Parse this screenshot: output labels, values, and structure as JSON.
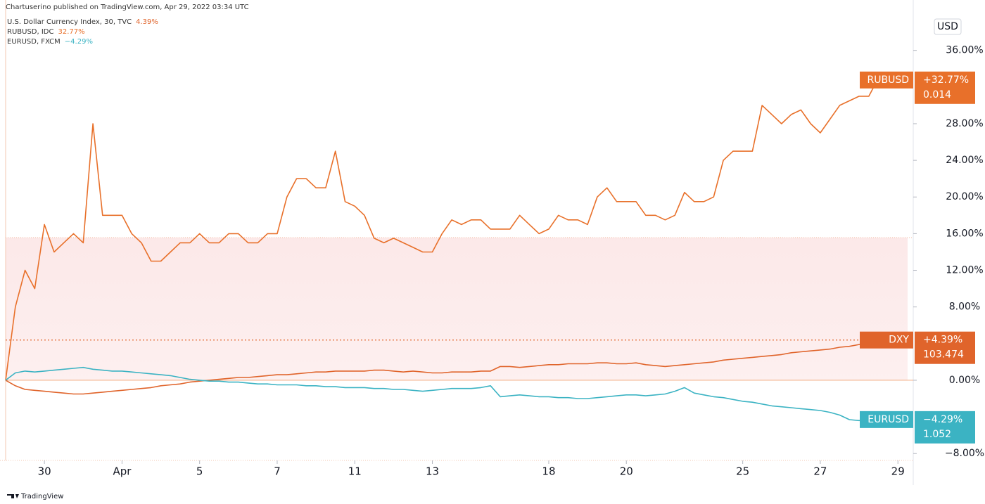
{
  "chart_data": {
    "type": "line",
    "attribution": "Chartuserino published on TradingView.com, Apr 29, 2022 03:34 UTC",
    "axis_unit": "USD",
    "footer": "TradingView",
    "categories": [
      null,
      null,
      null,
      null,
      "30",
      null,
      null,
      null,
      null,
      null,
      null,
      null,
      "Apr",
      null,
      null,
      null,
      null,
      null,
      null,
      null,
      "5",
      null,
      null,
      null,
      null,
      null,
      null,
      null,
      "7",
      null,
      null,
      null,
      null,
      null,
      null,
      null,
      "11",
      null,
      null,
      null,
      null,
      null,
      null,
      null,
      "13",
      null,
      null,
      null,
      null,
      null,
      null,
      null,
      null,
      null,
      null,
      null,
      "18",
      null,
      null,
      null,
      null,
      null,
      null,
      null,
      "20",
      null,
      null,
      null,
      null,
      null,
      null,
      null,
      null,
      null,
      null,
      null,
      "25",
      null,
      null,
      null,
      null,
      null,
      null,
      null,
      "27",
      null,
      null,
      null,
      null,
      null,
      null,
      null,
      "29",
      null
    ],
    "ylim": [
      -8.75,
      41.5
    ],
    "yticks": [
      {
        "value": 36,
        "label": "36.00%"
      },
      {
        "value": 28,
        "label": "28.00%"
      },
      {
        "value": 24,
        "label": "24.00%"
      },
      {
        "value": 20,
        "label": "20.00%"
      },
      {
        "value": 16,
        "label": "16.00%"
      },
      {
        "value": 12,
        "label": "12.00%"
      },
      {
        "value": 8,
        "label": "8.00%"
      },
      {
        "value": 0,
        "label": "0.00%"
      },
      {
        "value": -8,
        "label": "−8.00%"
      }
    ],
    "series": [
      {
        "name": "RUBUSD, IDC",
        "legend_value": "32.77%",
        "tag": "RUBUSD",
        "tag_change": "+32.77%",
        "tag_price": "0.014",
        "color": "#e8702a",
        "values": [
          0,
          8,
          12,
          10,
          17,
          14,
          15,
          16,
          15,
          28,
          18,
          18,
          18,
          16,
          15,
          13,
          13,
          14,
          15,
          15,
          16,
          15,
          15,
          16,
          16,
          15,
          15,
          16,
          16,
          20,
          22,
          22,
          21,
          21,
          25,
          19.5,
          19,
          18,
          15.5,
          15,
          15.5,
          15,
          14.5,
          14,
          14,
          16,
          17.5,
          17,
          17.5,
          17.5,
          16.5,
          16.5,
          16.5,
          18,
          17,
          16,
          16.5,
          18,
          17.5,
          17.5,
          17,
          20,
          21,
          19.5,
          19.5,
          19.5,
          18,
          18,
          17.5,
          18,
          20.5,
          19.5,
          19.5,
          20,
          24,
          25,
          25,
          25,
          30,
          29,
          28,
          29,
          29.5,
          28,
          27,
          28.5,
          30,
          30.5,
          31,
          31,
          33,
          33.5,
          33,
          32.77
        ]
      },
      {
        "name": "U.S. Dollar Currency Index, 30, TVC",
        "legend_value": "4.39%",
        "tag": "DXY",
        "tag_change": "+4.39%",
        "tag_price": "103.474",
        "color": "#e0642b",
        "values": [
          0,
          -0.6,
          -1,
          -1.1,
          -1.2,
          -1.3,
          -1.4,
          -1.5,
          -1.5,
          -1.4,
          -1.3,
          -1.2,
          -1.1,
          -1,
          -0.9,
          -0.8,
          -0.6,
          -0.5,
          -0.4,
          -0.2,
          -0.1,
          0,
          0.1,
          0.2,
          0.3,
          0.3,
          0.4,
          0.5,
          0.6,
          0.6,
          0.7,
          0.8,
          0.9,
          0.9,
          1.0,
          1.0,
          1.0,
          1.0,
          1.1,
          1.1,
          1.0,
          0.9,
          1.0,
          0.9,
          0.8,
          0.8,
          0.9,
          0.9,
          0.9,
          1.0,
          1.0,
          1.5,
          1.5,
          1.4,
          1.5,
          1.6,
          1.7,
          1.7,
          1.8,
          1.8,
          1.8,
          1.9,
          1.9,
          1.8,
          1.8,
          1.9,
          1.7,
          1.6,
          1.5,
          1.6,
          1.7,
          1.8,
          1.9,
          2.0,
          2.2,
          2.3,
          2.4,
          2.5,
          2.6,
          2.7,
          2.8,
          3.0,
          3.1,
          3.2,
          3.3,
          3.4,
          3.6,
          3.7,
          3.9,
          4.1,
          4.2,
          4.3,
          4.4,
          4.39
        ]
      },
      {
        "name": "EURUSD, FXCM",
        "legend_value": "−4.29%",
        "tag": "EURUSD",
        "tag_change": "−4.29%",
        "tag_price": "1.052",
        "color": "#3bb3c3",
        "values": [
          0,
          0.8,
          1,
          0.9,
          1,
          1.1,
          1.2,
          1.3,
          1.4,
          1.2,
          1.1,
          1.0,
          1.0,
          0.9,
          0.8,
          0.7,
          0.6,
          0.5,
          0.3,
          0.1,
          0,
          -0.1,
          -0.1,
          -0.2,
          -0.2,
          -0.3,
          -0.4,
          -0.4,
          -0.5,
          -0.5,
          -0.5,
          -0.6,
          -0.6,
          -0.7,
          -0.7,
          -0.8,
          -0.8,
          -0.8,
          -0.9,
          -0.9,
          -1.0,
          -1.0,
          -1.1,
          -1.2,
          -1.1,
          -1.0,
          -0.9,
          -0.9,
          -0.9,
          -0.8,
          -0.6,
          -1.8,
          -1.7,
          -1.6,
          -1.7,
          -1.8,
          -1.8,
          -1.9,
          -1.9,
          -2.0,
          -2.0,
          -1.9,
          -1.8,
          -1.7,
          -1.6,
          -1.6,
          -1.7,
          -1.6,
          -1.5,
          -1.2,
          -0.8,
          -1.4,
          -1.6,
          -1.8,
          -1.9,
          -2.1,
          -2.3,
          -2.4,
          -2.6,
          -2.8,
          -2.9,
          -3.0,
          -3.1,
          -3.2,
          -3.3,
          -3.5,
          -3.8,
          -4.3,
          -4.4,
          -4.2,
          -4.3,
          -4.2,
          -4.3,
          -4.29
        ]
      }
    ]
  }
}
